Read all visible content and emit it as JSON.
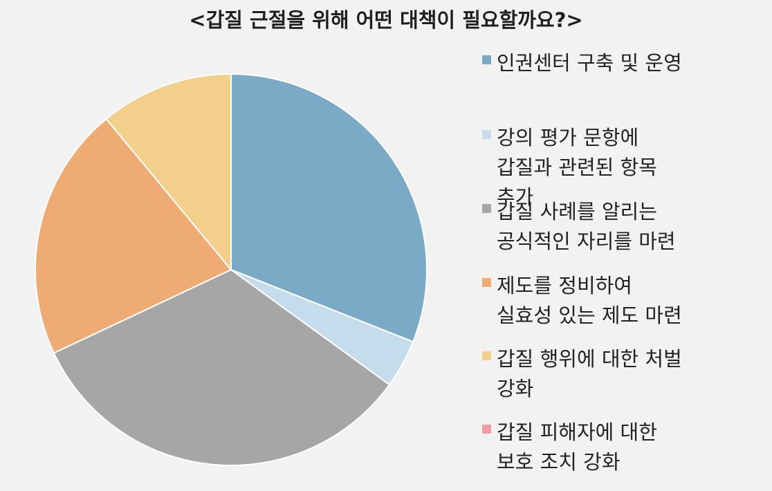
{
  "chart_data": {
    "type": "pie",
    "title": "<갑질 근절을 위해 어떤 대책이 필요할까요?>",
    "legend_position": "right",
    "categories": [
      "인권센터 구축 및 운영",
      "강의 평가 문항에\n갑질과 관련된 항목\n추가",
      "갑질 사례를 알리는\n공식적인 자리를 마련",
      "제도를 정비하여\n실효성 있는 제도 마련",
      "갑질 행위에 대한 처벌\n강화",
      "갑질 피해자에 대한\n보호 조치 강화"
    ],
    "values": [
      31,
      4,
      33,
      21,
      11,
      0
    ],
    "colors": [
      "#7aaac6",
      "#c5dcec",
      "#a6a6a6",
      "#eeac74",
      "#f2cf8a",
      "#f49aa4"
    ]
  }
}
